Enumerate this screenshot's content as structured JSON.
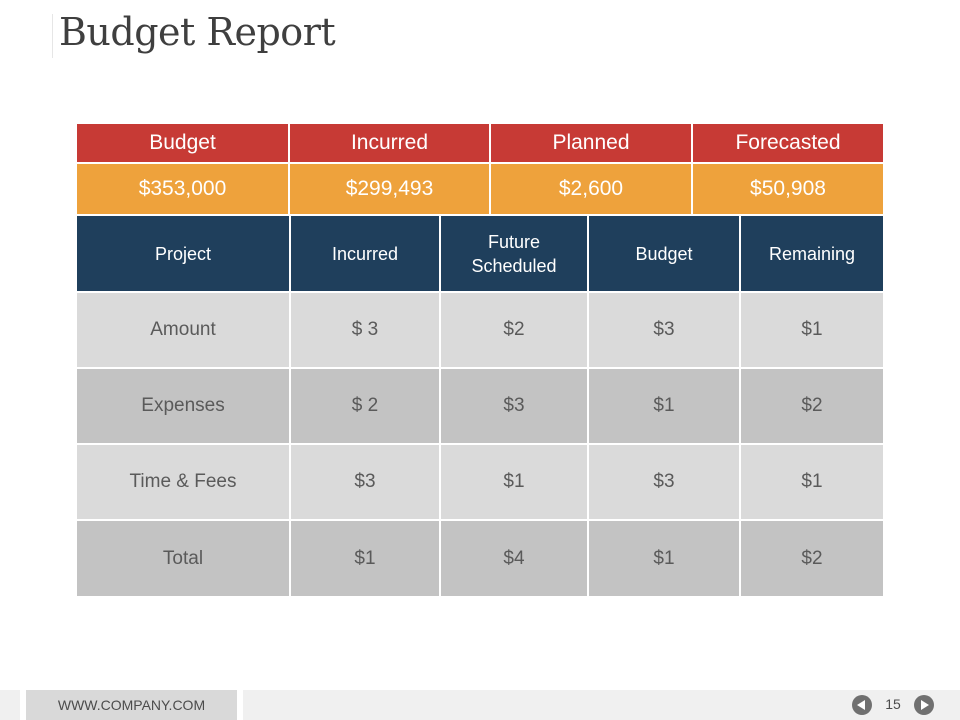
{
  "page": {
    "title": "Budget Report",
    "page_number": "15",
    "footer_url": "WWW.COMPANY.COM"
  },
  "summary": {
    "headers": [
      "Budget",
      "Incurred",
      "Planned",
      "Forecasted"
    ],
    "values": [
      "$353,000",
      "$299,493",
      "$2,600",
      "$50,908"
    ]
  },
  "table": {
    "columns": [
      "Project",
      "Incurred",
      "Future Scheduled",
      "Budget",
      "Remaining"
    ],
    "rows": [
      [
        "Amount",
        "$ 3",
        "$2",
        "$3",
        "$1"
      ],
      [
        "Expenses",
        "$ 2",
        "$3",
        "$1",
        "$2"
      ],
      [
        "Time & Fees",
        "$3",
        "$1",
        "$3",
        "$1"
      ],
      [
        "Total",
        "$1",
        "$4",
        "$1",
        "$2"
      ]
    ]
  },
  "colors": {
    "header_red": "#c73a35",
    "value_orange": "#eea23c",
    "table_header_navy": "#1f3f5c",
    "row_light": "#dadada",
    "row_dark": "#c3c3c3"
  },
  "icons": [
    "prev-arrow-icon",
    "next-arrow-icon"
  ]
}
